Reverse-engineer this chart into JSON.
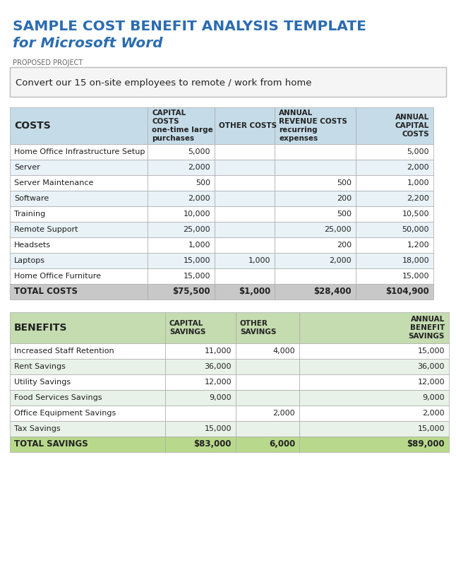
{
  "title_line1": "SAMPLE COST BENEFIT ANALYSIS TEMPLATE",
  "title_line2": "for Microsoft Word",
  "title_color": "#2B6CB0",
  "proposed_project_label": "PROPOSED PROJECT",
  "proposed_project_text": "Convert our 15 on-site employees to remote / work from home",
  "costs_header": [
    "COSTS",
    "CAPITAL\nCOSTS\none-time large\npurchases",
    "OTHER COSTS",
    "ANNUAL\nREVENUE COSTS\nrecurring\nexpenses",
    "ANNUAL\nCAPITAL\nCOSTS"
  ],
  "costs_rows": [
    [
      "Home Office Infrastructure Setup",
      "5,000",
      "",
      "",
      "5,000"
    ],
    [
      "Server",
      "2,000",
      "",
      "",
      "2,000"
    ],
    [
      "Server Maintenance",
      "500",
      "",
      "500",
      "1,000"
    ],
    [
      "Software",
      "2,000",
      "",
      "200",
      "2,200"
    ],
    [
      "Training",
      "10,000",
      "",
      "500",
      "10,500"
    ],
    [
      "Remote Support",
      "25,000",
      "",
      "25,000",
      "50,000"
    ],
    [
      "Headsets",
      "1,000",
      "",
      "200",
      "1,200"
    ],
    [
      "Laptops",
      "15,000",
      "1,000",
      "2,000",
      "18,000"
    ],
    [
      "Home Office Furniture",
      "15,000",
      "",
      "",
      "15,000"
    ]
  ],
  "costs_total": [
    "TOTAL COSTS",
    "$75,500",
    "$1,000",
    "$28,400",
    "$104,900"
  ],
  "benefits_header": [
    "BENEFITS",
    "CAPITAL\nSAVINGS",
    "OTHER\nSAVINGS",
    "",
    "ANNUAL\nBENEFIT\nSAVINGS"
  ],
  "benefits_rows": [
    [
      "Increased Staff Retention",
      "11,000",
      "4,000",
      "",
      "15,000"
    ],
    [
      "Rent Savings",
      "36,000",
      "",
      "",
      "36,000"
    ],
    [
      "Utility Savings",
      "12,000",
      "",
      "",
      "12,000"
    ],
    [
      "Food Services Savings",
      "9,000",
      "",
      "",
      "9,000"
    ],
    [
      "Office Equipment Savings",
      "",
      "2,000",
      "",
      "2,000"
    ],
    [
      "Tax Savings",
      "15,000",
      "",
      "",
      "15,000"
    ]
  ],
  "benefits_total": [
    "TOTAL SAVINGS",
    "$83,000",
    "6,000",
    "",
    "$89,000"
  ],
  "header_bg_costs": "#c5dce8",
  "header_bg_benefits": "#c5dbb0",
  "alt_row_bg_costs": "#e8f2f7",
  "alt_row_bg_benefits": "#e8f2e8",
  "total_row_bg_costs": "#c8c8c8",
  "total_row_bg_benefits": "#b8d98b",
  "white": "#ffffff",
  "border_color": "#aaaaaa",
  "text_dark": "#222222",
  "proposed_box_bg": "#f5f5f5"
}
